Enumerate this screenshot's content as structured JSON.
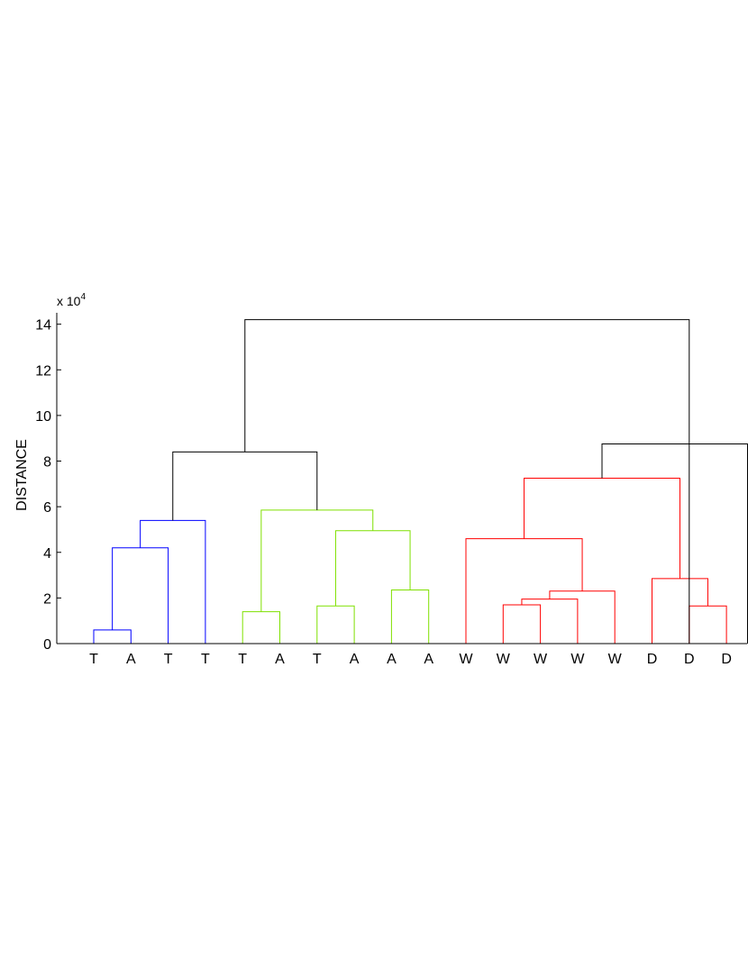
{
  "chart_data": {
    "type": "dendrogram",
    "ylabel": "DISTANCE",
    "y_multiplier": {
      "base": "x 10",
      "exponent": "4"
    },
    "ylim": [
      0,
      14.5
    ],
    "y_ticks": [
      "0",
      "2",
      "4",
      "6",
      "8",
      "10",
      "12",
      "14"
    ],
    "y_tick_values": [
      0,
      2,
      4,
      6,
      8,
      10,
      12,
      14
    ],
    "leaf_labels": [
      "T",
      "A",
      "T",
      "T",
      "T",
      "A",
      "T",
      "A",
      "A",
      "A",
      "W",
      "W",
      "W",
      "W",
      "W",
      "D",
      "D",
      "D"
    ],
    "colors": {
      "cluster_blue": "#0000ff",
      "cluster_green": "#7fe000",
      "cluster_red": "#ff0000",
      "above_cut": "#000000"
    },
    "links": [
      {
        "left": 1,
        "right": 2,
        "height": 0.6,
        "color": "cluster_blue"
      },
      {
        "left": 1.5,
        "right": 3,
        "height": 4.2,
        "color": "cluster_blue"
      },
      {
        "left": 2.25,
        "right": 4,
        "height": 5.4,
        "color": "cluster_blue"
      },
      {
        "left": 5,
        "right": 6,
        "height": 1.4,
        "color": "cluster_green"
      },
      {
        "left": 7,
        "right": 8,
        "height": 1.65,
        "color": "cluster_green"
      },
      {
        "left": 9,
        "right": 10,
        "height": 2.35,
        "color": "cluster_green"
      },
      {
        "left": 7.5,
        "right": 9.5,
        "height": 4.95,
        "color": "cluster_green"
      },
      {
        "left": 5.5,
        "right": 8.5,
        "height": 5.85,
        "color": "cluster_green"
      },
      {
        "left": 3.125,
        "right": 7,
        "height": 8.4,
        "color": "above_cut"
      },
      {
        "left": 12,
        "right": 13,
        "height": 1.7,
        "color": "cluster_red"
      },
      {
        "left": 12.5,
        "right": 14,
        "height": 1.95,
        "color": "cluster_red"
      },
      {
        "left": 13.25,
        "right": 15,
        "height": 2.3,
        "color": "cluster_red"
      },
      {
        "left": 11,
        "right": 14.125,
        "height": 4.6,
        "color": "cluster_red"
      },
      {
        "left": 17,
        "right": 18,
        "height": 1.65,
        "color": "cluster_red"
      },
      {
        "left": 16,
        "right": 17.5,
        "height": 2.85,
        "color": "cluster_red"
      },
      {
        "left": 12.5625,
        "right": 16.75,
        "height": 7.25,
        "color": "cluster_red"
      },
      {
        "left": 14.65625,
        "right": 19.5,
        "height": 8.75,
        "color": "above_cut"
      },
      {
        "left": 5.0625,
        "right": 17,
        "height": 14.2,
        "color": "above_cut"
      }
    ]
  }
}
